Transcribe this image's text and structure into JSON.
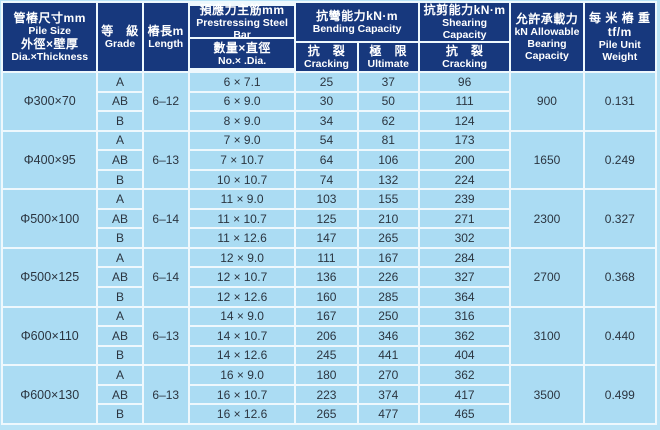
{
  "colors": {
    "page_background": "#b9e3f6",
    "header_background": "#17387d",
    "header_text": "#ffffff",
    "cell_background": "#abdcf3",
    "cell_text": "#2b3540",
    "grid_line": "#eef8fd"
  },
  "header": {
    "pile_size": {
      "zh1": "管樁尺寸mm",
      "en1": "Pile Size",
      "zh2": "外徑×壁厚",
      "en2": "Dia.×Thickness"
    },
    "grade": {
      "zh": "等　級",
      "en": "Grade"
    },
    "length": {
      "zh": "樁長m",
      "en": "Length"
    },
    "steel_bar": {
      "zh1": "預應力主筋mm",
      "en1": "Prestressing Steel Bar",
      "zh2": "數量×直徑",
      "en2": "No.× .Dia."
    },
    "bending": {
      "zh": "抗彎能力kN·m",
      "en": "Bending Capacity"
    },
    "bending_cracking": {
      "zh": "抗　裂",
      "en": "Cracking"
    },
    "bending_ultimate": {
      "zh": "極　限",
      "en": "Ultimate"
    },
    "shearing": {
      "zh": "抗剪能力kN·m",
      "en": "Shearing Capacity"
    },
    "shearing_cracking": {
      "zh": "抗　裂",
      "en": "Cracking"
    },
    "bearing": {
      "zh": "允許承載力",
      "en1": "kN Allowable",
      "en2": "Bearing",
      "en3": "Capacity"
    },
    "weight": {
      "zh": "每 米 樁 重 tf/m",
      "en": "Pile Unit Weight"
    }
  },
  "chart_data": {
    "type": "table",
    "columns": [
      "管樁尺寸mm Pile Size 外徑×壁厚 Dia.×Thickness",
      "等級 Grade",
      "樁長m Length",
      "預應力主筋mm Prestressing Steel Bar 數量×直徑 No.× .Dia.",
      "抗彎能力kN·m Bending Capacity — 抗裂 Cracking",
      "抗彎能力kN·m Bending Capacity — 極限 Ultimate",
      "抗剪能力kN·m Shearing Capacity — 抗裂 Cracking",
      "允許承載力 kN Allowable Bearing Capacity",
      "每米樁重 tf/m Pile Unit Weight"
    ],
    "groups": [
      {
        "pile_size": "Φ300×70",
        "length": "6–12",
        "bearing": "900",
        "unit_weight": "0.131",
        "rows": [
          {
            "grade": "A",
            "bars": "6 × 7.1",
            "bend_crack": "25",
            "bend_ult": "37",
            "shear_crack": "96"
          },
          {
            "grade": "AB",
            "bars": "6 × 9.0",
            "bend_crack": "30",
            "bend_ult": "50",
            "shear_crack": "111"
          },
          {
            "grade": "B",
            "bars": "8 × 9.0",
            "bend_crack": "34",
            "bend_ult": "62",
            "shear_crack": "124"
          }
        ]
      },
      {
        "pile_size": "Φ400×95",
        "length": "6–13",
        "bearing": "1650",
        "unit_weight": "0.249",
        "rows": [
          {
            "grade": "A",
            "bars": "7 × 9.0",
            "bend_crack": "54",
            "bend_ult": "81",
            "shear_crack": "173"
          },
          {
            "grade": "AB",
            "bars": "7 × 10.7",
            "bend_crack": "64",
            "bend_ult": "106",
            "shear_crack": "200"
          },
          {
            "grade": "B",
            "bars": "10 × 10.7",
            "bend_crack": "74",
            "bend_ult": "132",
            "shear_crack": "224"
          }
        ]
      },
      {
        "pile_size": "Φ500×100",
        "length": "6–14",
        "bearing": "2300",
        "unit_weight": "0.327",
        "rows": [
          {
            "grade": "A",
            "bars": "11 × 9.0",
            "bend_crack": "103",
            "bend_ult": "155",
            "shear_crack": "239"
          },
          {
            "grade": "AB",
            "bars": "11 × 10.7",
            "bend_crack": "125",
            "bend_ult": "210",
            "shear_crack": "271"
          },
          {
            "grade": "B",
            "bars": "11 × 12.6",
            "bend_crack": "147",
            "bend_ult": "265",
            "shear_crack": "302"
          }
        ]
      },
      {
        "pile_size": "Φ500×125",
        "length": "6–14",
        "bearing": "2700",
        "unit_weight": "0.368",
        "rows": [
          {
            "grade": "A",
            "bars": "12 × 9.0",
            "bend_crack": "111",
            "bend_ult": "167",
            "shear_crack": "284"
          },
          {
            "grade": "AB",
            "bars": "12 × 10.7",
            "bend_crack": "136",
            "bend_ult": "226",
            "shear_crack": "327"
          },
          {
            "grade": "B",
            "bars": "12 × 12.6",
            "bend_crack": "160",
            "bend_ult": "285",
            "shear_crack": "364"
          }
        ]
      },
      {
        "pile_size": "Φ600×110",
        "length": "6–13",
        "bearing": "3100",
        "unit_weight": "0.440",
        "rows": [
          {
            "grade": "A",
            "bars": "14 × 9.0",
            "bend_crack": "167",
            "bend_ult": "250",
            "shear_crack": "316"
          },
          {
            "grade": "AB",
            "bars": "14 × 10.7",
            "bend_crack": "206",
            "bend_ult": "346",
            "shear_crack": "362"
          },
          {
            "grade": "B",
            "bars": "14 × 12.6",
            "bend_crack": "245",
            "bend_ult": "441",
            "shear_crack": "404"
          }
        ]
      },
      {
        "pile_size": "Φ600×130",
        "length": "6–13",
        "bearing": "3500",
        "unit_weight": "0.499",
        "rows": [
          {
            "grade": "A",
            "bars": "16 × 9.0",
            "bend_crack": "180",
            "bend_ult": "270",
            "shear_crack": "362"
          },
          {
            "grade": "AB",
            "bars": "16 × 10.7",
            "bend_crack": "223",
            "bend_ult": "374",
            "shear_crack": "417"
          },
          {
            "grade": "B",
            "bars": "16 × 12.6",
            "bend_crack": "265",
            "bend_ult": "477",
            "shear_crack": "465"
          }
        ]
      }
    ]
  }
}
